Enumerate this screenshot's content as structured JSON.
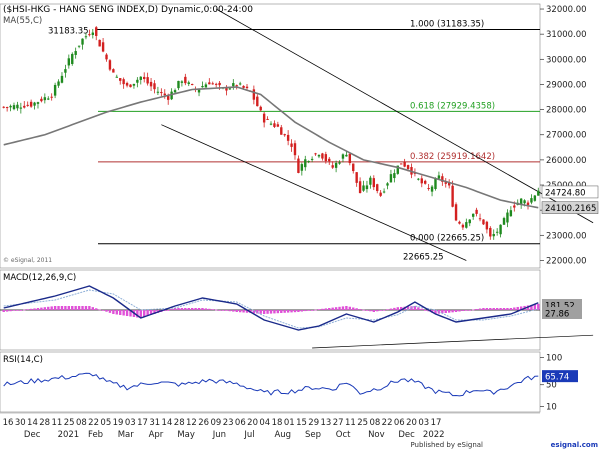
{
  "chart_data": [
    {
      "type": "candlestick",
      "title": "($HSI-HKG - HANG SENG INDEX,D) Dynamic,0:00-24:00",
      "indicator_label": "MA(55,C)",
      "copyright": "© eSignal, 2011",
      "ylim": [
        21700,
        32200
      ],
      "y_ticks": [
        22000,
        23000,
        24000,
        25000,
        26000,
        27000,
        28000,
        29000,
        30000,
        31000,
        32000
      ],
      "y_tick_labels": [
        "22000.00",
        "23000.00",
        "24000.00",
        "25000.00",
        "26000.00",
        "27000.00",
        "28000.00",
        "29000.00",
        "30000.00",
        "31000.00",
        "32000.00"
      ],
      "price_labels": [
        {
          "text": "24724.80",
          "value": 24724.8,
          "bg": "#ffffff"
        },
        {
          "text": "24100.2165",
          "value": 24100.2165,
          "bg": "#d4d4d4"
        }
      ],
      "fib_levels": [
        {
          "label": "1.000 (31183.35)",
          "value": 31183.35,
          "color": "#000000"
        },
        {
          "label": "0.618 (27929.4358)",
          "value": 27929.4358,
          "color": "#22a022"
        },
        {
          "label": "0.382 (25919.1642)",
          "value": 25919.1642,
          "color": "#b03030"
        },
        {
          "label": "0.000 (22665.25)",
          "value": 22665.25,
          "color": "#000000"
        }
      ],
      "annotations": [
        {
          "text": "31183.35",
          "value": 31183.35
        },
        {
          "text": "22665.25",
          "value": 22665.25
        }
      ],
      "ohlc_anchors": [
        [
          0,
          28100
        ],
        [
          8,
          28200
        ],
        [
          14,
          28600
        ],
        [
          20,
          30200
        ],
        [
          23,
          30800
        ],
        [
          26,
          31183
        ],
        [
          29,
          30300
        ],
        [
          32,
          29400
        ],
        [
          36,
          28900
        ],
        [
          40,
          29300
        ],
        [
          44,
          28800
        ],
        [
          48,
          28500
        ],
        [
          52,
          29200
        ],
        [
          56,
          28800
        ],
        [
          60,
          29100
        ],
        [
          64,
          28800
        ],
        [
          68,
          29000
        ],
        [
          72,
          28700
        ],
        [
          76,
          27600
        ],
        [
          80,
          27300
        ],
        [
          84,
          26600
        ],
        [
          86,
          25600
        ],
        [
          88,
          26000
        ],
        [
          92,
          26300
        ],
        [
          96,
          25700
        ],
        [
          100,
          26300
        ],
        [
          104,
          24700
        ],
        [
          107,
          25200
        ],
        [
          110,
          24600
        ],
        [
          113,
          25400
        ],
        [
          116,
          25900
        ],
        [
          118,
          25700
        ],
        [
          121,
          25200
        ],
        [
          124,
          24800
        ],
        [
          127,
          25300
        ],
        [
          130,
          24900
        ],
        [
          132,
          23600
        ],
        [
          134,
          23400
        ],
        [
          137,
          23900
        ],
        [
          140,
          23500
        ],
        [
          142,
          22900
        ],
        [
          145,
          23300
        ],
        [
          148,
          24100
        ],
        [
          151,
          24400
        ],
        [
          153,
          24300
        ],
        [
          156,
          24800
        ]
      ],
      "ma_anchors": [
        [
          0,
          26600
        ],
        [
          12,
          27000
        ],
        [
          22,
          27500
        ],
        [
          30,
          27900
        ],
        [
          40,
          28300
        ],
        [
          55,
          28800
        ],
        [
          68,
          28900
        ],
        [
          75,
          28600
        ],
        [
          85,
          27500
        ],
        [
          95,
          26700
        ],
        [
          105,
          26000
        ],
        [
          115,
          25700
        ],
        [
          125,
          25300
        ],
        [
          135,
          24900
        ],
        [
          145,
          24400
        ],
        [
          152,
          24200
        ],
        [
          156,
          24100
        ]
      ],
      "channel_upper": [
        [
          62,
          32000
        ],
        [
          172,
          23500
        ]
      ],
      "channel_lower": [
        [
          46,
          27400
        ],
        [
          135,
          22000
        ]
      ]
    },
    {
      "type": "line",
      "title": "MACD(12,26,9,C)",
      "ylim": [
        -1000,
        1000
      ],
      "value_labels": [
        {
          "text": "181.52",
          "value": 181.52,
          "bg": "#a0a0a0"
        },
        {
          "text": "27.86",
          "value": 27.86,
          "bg": "#a0a0a0"
        }
      ],
      "macd_anchors": [
        [
          0,
          50
        ],
        [
          15,
          350
        ],
        [
          25,
          600
        ],
        [
          32,
          300
        ],
        [
          40,
          -200
        ],
        [
          50,
          100
        ],
        [
          58,
          300
        ],
        [
          68,
          150
        ],
        [
          76,
          -250
        ],
        [
          86,
          -500
        ],
        [
          92,
          -400
        ],
        [
          100,
          -100
        ],
        [
          108,
          -300
        ],
        [
          115,
          -50
        ],
        [
          120,
          200
        ],
        [
          126,
          -100
        ],
        [
          132,
          -300
        ],
        [
          140,
          -200
        ],
        [
          148,
          -100
        ],
        [
          156,
          181
        ]
      ],
      "signal_anchors": [
        [
          0,
          100
        ],
        [
          15,
          250
        ],
        [
          25,
          500
        ],
        [
          32,
          400
        ],
        [
          40,
          0
        ],
        [
          50,
          50
        ],
        [
          58,
          250
        ],
        [
          68,
          200
        ],
        [
          76,
          -150
        ],
        [
          86,
          -450
        ],
        [
          92,
          -420
        ],
        [
          100,
          -200
        ],
        [
          108,
          -250
        ],
        [
          115,
          -120
        ],
        [
          120,
          100
        ],
        [
          126,
          0
        ],
        [
          132,
          -250
        ],
        [
          140,
          -250
        ],
        [
          148,
          -150
        ],
        [
          156,
          28
        ]
      ],
      "trendline": [
        [
          90,
          -950
        ],
        [
          172,
          -630
        ]
      ]
    },
    {
      "type": "line",
      "title": "RSI(14,C)",
      "ylim": [
        0,
        110
      ],
      "y_ticks": [
        10,
        50,
        100
      ],
      "value_labels": [
        {
          "text": "65.74",
          "value": 65.74,
          "bg": "#1a3ab8"
        }
      ],
      "rsi_anchors": [
        [
          0,
          50
        ],
        [
          10,
          58
        ],
        [
          20,
          65
        ],
        [
          26,
          70
        ],
        [
          30,
          55
        ],
        [
          36,
          45
        ],
        [
          44,
          55
        ],
        [
          52,
          50
        ],
        [
          60,
          58
        ],
        [
          68,
          52
        ],
        [
          76,
          35
        ],
        [
          84,
          38
        ],
        [
          90,
          45
        ],
        [
          96,
          42
        ],
        [
          100,
          55
        ],
        [
          104,
          35
        ],
        [
          110,
          45
        ],
        [
          116,
          60
        ],
        [
          120,
          55
        ],
        [
          126,
          38
        ],
        [
          132,
          30
        ],
        [
          138,
          42
        ],
        [
          142,
          35
        ],
        [
          148,
          48
        ],
        [
          152,
          60
        ],
        [
          156,
          65.74
        ]
      ]
    }
  ],
  "x_axis": {
    "day_labels": [
      "16",
      "30",
      "14",
      "28",
      "11",
      "25",
      "08",
      "22",
      "05",
      "19",
      "03",
      "17",
      "31",
      "14",
      "28",
      "12",
      "26",
      "09",
      "23",
      "06",
      "20",
      "04",
      "18",
      "01",
      "15",
      "29",
      "13",
      "27",
      "11",
      "25",
      "08",
      "22",
      "06",
      "20",
      "03",
      "17"
    ],
    "month_labels": [
      {
        "text": "Dec",
        "index": 8
      },
      {
        "text": "2021",
        "index": 20
      },
      {
        "text": "Feb",
        "index": 29
      },
      {
        "text": "Mar",
        "index": 39
      },
      {
        "text": "Apr",
        "index": 49
      },
      {
        "text": "May",
        "index": 59
      },
      {
        "text": "Jun",
        "index": 70
      },
      {
        "text": "Jul",
        "index": 80
      },
      {
        "text": "Aug",
        "index": 91
      },
      {
        "text": "Sep",
        "index": 101
      },
      {
        "text": "Oct",
        "index": 111
      },
      {
        "text": "Nov",
        "index": 122
      },
      {
        "text": "Dec",
        "index": 132
      },
      {
        "text": "2022",
        "index": 141
      }
    ],
    "footer": "Published by eSignal",
    "footer_logo": "esignal.com"
  }
}
